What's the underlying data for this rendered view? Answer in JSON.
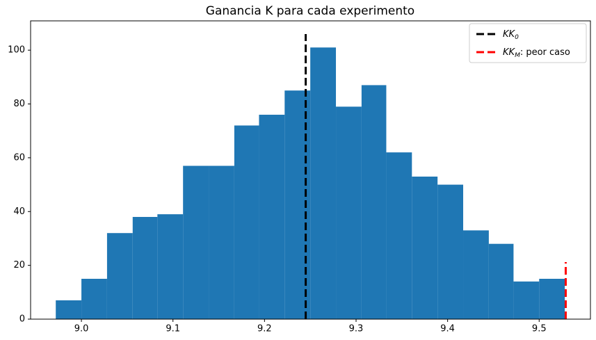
{
  "chart_data": {
    "type": "histogram",
    "title": "Ganancia K para cada experimento",
    "bins": [
      8.972,
      9.0,
      9.028,
      9.056,
      9.083,
      9.111,
      9.139,
      9.167,
      9.194,
      9.222,
      9.25,
      9.278,
      9.306,
      9.333,
      9.361,
      9.389,
      9.417,
      9.445,
      9.472,
      9.5,
      9.528
    ],
    "values": [
      7,
      15,
      32,
      38,
      39,
      57,
      57,
      72,
      76,
      85,
      101,
      79,
      87,
      62,
      53,
      50,
      33,
      28,
      14,
      15
    ],
    "color": "#1f77b4",
    "xlim": [
      8.9445,
      9.556
    ],
    "ylim": [
      0,
      110.9
    ],
    "xticks": [
      {
        "value": 9.0,
        "label": "9.0"
      },
      9.1,
      9.2,
      9.3,
      9.4,
      9.5
    ],
    "yticks": [
      0,
      20,
      40,
      60,
      80,
      100
    ],
    "vlines": [
      {
        "name": "KK",
        "sub": "0",
        "suffix": "",
        "color": "#000000",
        "x": 9.245,
        "ymax": 106
      },
      {
        "name": "KK",
        "sub": "M",
        "suffix": ": peor caso",
        "color": "#ff0000",
        "x": 9.529,
        "ymax": 21.2
      }
    ],
    "legend": "upper right"
  }
}
